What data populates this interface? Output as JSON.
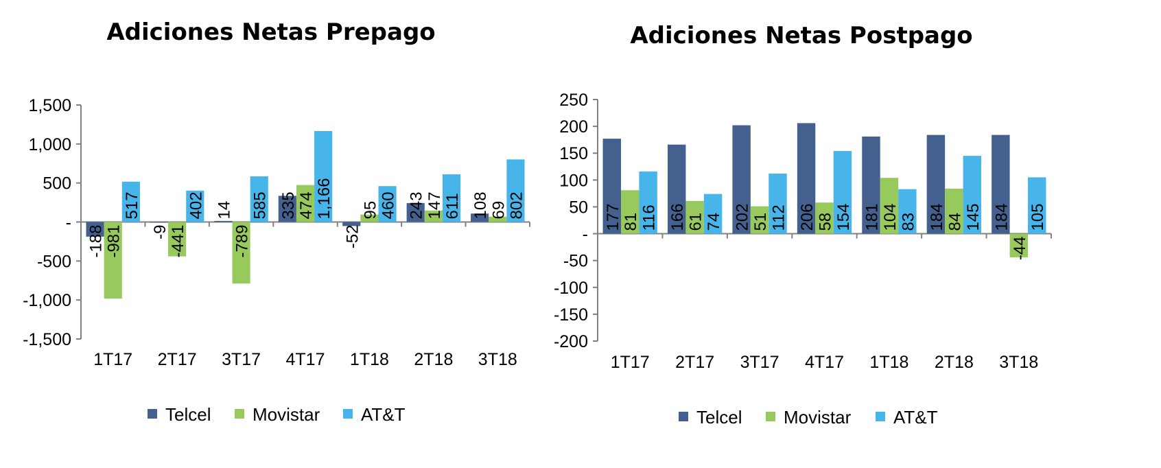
{
  "colors": {
    "telcel": "#44608E",
    "movistar": "#97C95C",
    "att": "#48B5EA",
    "axis": "#808080"
  },
  "chart_data": [
    {
      "type": "bar",
      "title": "Adiciones Netas Prepago",
      "categories": [
        "1T17",
        "2T17",
        "3T17",
        "4T17",
        "1T18",
        "2T18",
        "3T18"
      ],
      "ylim": [
        -1500,
        1500
      ],
      "yticks": [
        -1500,
        -1000,
        -500,
        0,
        500,
        1000,
        1500
      ],
      "ytick_labels": [
        "-1,500",
        "-1,000",
        "-500",
        "-",
        "500",
        "1,000",
        "1,500"
      ],
      "grid": false,
      "legend_position": "bottom",
      "series": [
        {
          "name": "Telcel",
          "values": [
            -188,
            -9,
            14,
            335,
            -52,
            243,
            108
          ],
          "labels": [
            "-188",
            "-9",
            "14",
            "335",
            "-52",
            "243",
            "108"
          ]
        },
        {
          "name": "Movistar",
          "values": [
            -981,
            -441,
            -789,
            474,
            95,
            147,
            69
          ],
          "labels": [
            "-981",
            "-441",
            "-789",
            "474",
            "95",
            "147",
            "69"
          ]
        },
        {
          "name": "AT&T",
          "values": [
            517,
            402,
            585,
            1166,
            460,
            611,
            802
          ],
          "labels": [
            "517",
            "402",
            "585",
            "1,166",
            "460",
            "611",
            "802"
          ]
        }
      ]
    },
    {
      "type": "bar",
      "title": "Adiciones Netas Postpago",
      "categories": [
        "1T17",
        "2T17",
        "3T17",
        "4T17",
        "1T18",
        "2T18",
        "3T18"
      ],
      "ylim": [
        -200,
        250
      ],
      "yticks": [
        -200,
        -150,
        -100,
        -50,
        0,
        50,
        100,
        150,
        200,
        250
      ],
      "ytick_labels": [
        "-200",
        "-150",
        "-100",
        "-50",
        "-",
        "50",
        "100",
        "150",
        "200",
        "250"
      ],
      "grid": false,
      "legend_position": "bottom",
      "series": [
        {
          "name": "Telcel",
          "values": [
            177,
            166,
            202,
            206,
            181,
            184,
            184
          ],
          "labels": [
            "177",
            "166",
            "202",
            "206",
            "181",
            "184",
            "184"
          ]
        },
        {
          "name": "Movistar",
          "values": [
            81,
            61,
            51,
            58,
            104,
            84,
            -44
          ],
          "labels": [
            "81",
            "61",
            "51",
            "58",
            "104",
            "84",
            "-44"
          ]
        },
        {
          "name": "AT&T",
          "values": [
            116,
            74,
            112,
            154,
            83,
            145,
            105
          ],
          "labels": [
            "116",
            "74",
            "112",
            "154",
            "83",
            "145",
            "105"
          ]
        }
      ]
    }
  ]
}
